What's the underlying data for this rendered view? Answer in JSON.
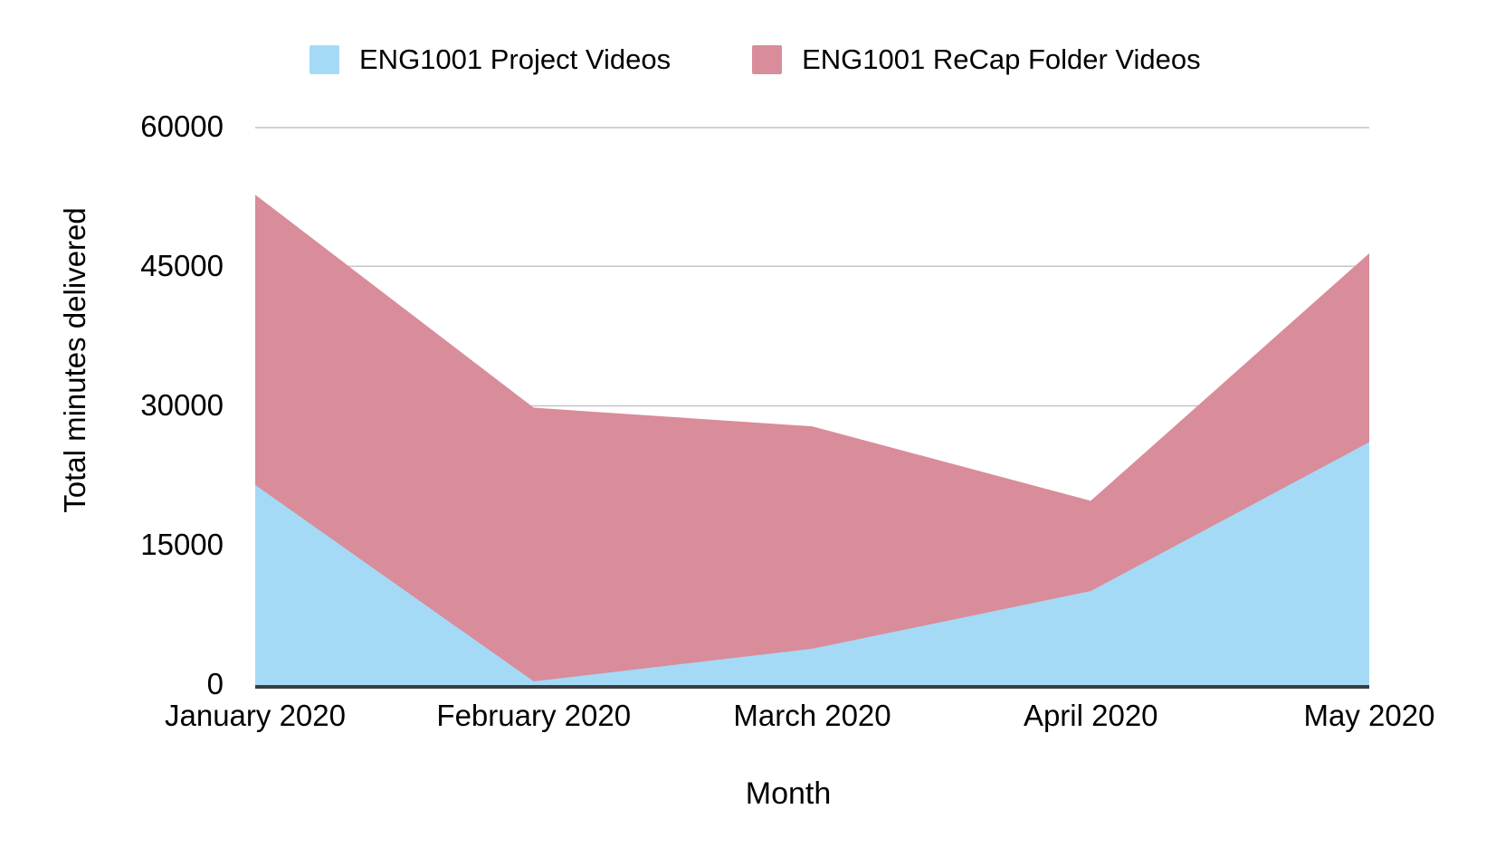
{
  "chart_data": {
    "type": "area",
    "stacked": true,
    "title": "",
    "xlabel": "Month",
    "ylabel": "Total minutes delivered",
    "categories": [
      "January 2020",
      "February 2020",
      "March 2020",
      "April 2020",
      "May 2020"
    ],
    "series": [
      {
        "name": "ENG1001 Project Videos",
        "color": "#A5DAF6",
        "values": [
          21500,
          400,
          3900,
          10100,
          26100
        ]
      },
      {
        "name": "ENG1001 ReCap Folder Videos",
        "color": "#D98C9A",
        "values": [
          31200,
          29400,
          23900,
          9700,
          20300
        ]
      }
    ],
    "stacked_totals": [
      52700,
      29800,
      27800,
      19800,
      46400
    ],
    "ylim": [
      0,
      60000
    ],
    "y_ticks": [
      0,
      15000,
      30000,
      45000,
      60000
    ],
    "y_tick_labels": [
      "0",
      "15000",
      "30000",
      "45000",
      "60000"
    ],
    "grid": "horizontal",
    "legend_position": "top",
    "colors": {
      "axis_line": "#383D42",
      "gridline": "#C4C4C4",
      "text": "#000000",
      "background": "#FFFFFF"
    }
  }
}
